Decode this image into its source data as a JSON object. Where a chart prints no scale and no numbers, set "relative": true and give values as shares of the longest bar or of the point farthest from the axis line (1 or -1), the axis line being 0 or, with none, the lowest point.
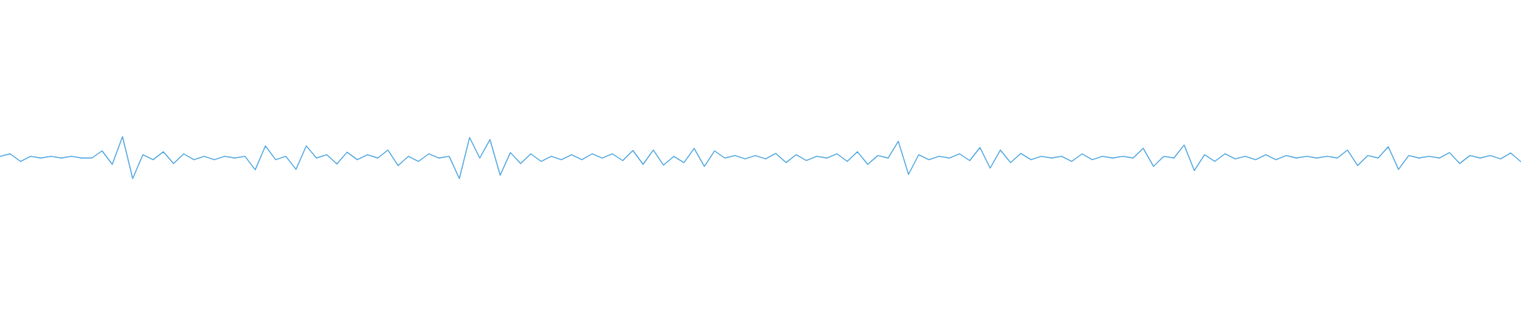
{
  "chart_data": {
    "type": "line",
    "relative": true,
    "categories": [
      null,
      null,
      null,
      null,
      null,
      null,
      null,
      null,
      null,
      null,
      null,
      null,
      null,
      null,
      null,
      null,
      null,
      null,
      null,
      null,
      null,
      null,
      null,
      null,
      null,
      null,
      null,
      null,
      null,
      null,
      null,
      null,
      null,
      null,
      null,
      null,
      null,
      null,
      null,
      null,
      null,
      null,
      null,
      null,
      null,
      null,
      null,
      null,
      null,
      null,
      null,
      null,
      null,
      null,
      null,
      null,
      null,
      null,
      null,
      null,
      null,
      null,
      null,
      null,
      null,
      null,
      null,
      null,
      null,
      null,
      null,
      null,
      null,
      null,
      null,
      null,
      null,
      null,
      null,
      null,
      null,
      null,
      null,
      null,
      null,
      null,
      null,
      null,
      null,
      null,
      null,
      null,
      null,
      null,
      null,
      null,
      null,
      null,
      null,
      null,
      null,
      null,
      null,
      null,
      null,
      null,
      null,
      null,
      null,
      null,
      null,
      null,
      null,
      null,
      null,
      null,
      null,
      null,
      null,
      null,
      null,
      null,
      null,
      null,
      null,
      null,
      null,
      null,
      null,
      null,
      null,
      null,
      null,
      null,
      null,
      null,
      null,
      null,
      null,
      null,
      null,
      null,
      null,
      null,
      null,
      null,
      null,
      null,
      null,
      null
    ],
    "series": [
      {
        "color": "#5dade2",
        "values": [
          0.53,
          0.59,
          0.41,
          0.53,
          0.49,
          0.53,
          0.49,
          0.53,
          0.49,
          0.49,
          0.66,
          0.34,
          1.0,
          0.0,
          0.57,
          0.45,
          0.64,
          0.36,
          0.59,
          0.45,
          0.53,
          0.45,
          0.53,
          0.49,
          0.53,
          0.21,
          0.78,
          0.45,
          0.53,
          0.22,
          0.78,
          0.49,
          0.57,
          0.35,
          0.63,
          0.45,
          0.57,
          0.49,
          0.68,
          0.31,
          0.53,
          0.41,
          0.59,
          0.49,
          0.53,
          0.0,
          0.98,
          0.49,
          0.93,
          0.08,
          0.62,
          0.36,
          0.59,
          0.41,
          0.53,
          0.45,
          0.57,
          0.45,
          0.59,
          0.49,
          0.59,
          0.43,
          0.67,
          0.34,
          0.68,
          0.32,
          0.53,
          0.38,
          0.72,
          0.29,
          0.66,
          0.49,
          0.55,
          0.47,
          0.55,
          0.47,
          0.6,
          0.38,
          0.57,
          0.43,
          0.53,
          0.49,
          0.59,
          0.41,
          0.64,
          0.34,
          0.55,
          0.49,
          0.89,
          0.1,
          0.57,
          0.45,
          0.53,
          0.49,
          0.59,
          0.43,
          0.74,
          0.25,
          0.68,
          0.38,
          0.6,
          0.45,
          0.53,
          0.49,
          0.53,
          0.41,
          0.59,
          0.45,
          0.53,
          0.49,
          0.53,
          0.49,
          0.72,
          0.29,
          0.53,
          0.49,
          0.8,
          0.19,
          0.57,
          0.41,
          0.59,
          0.47,
          0.53,
          0.45,
          0.57,
          0.45,
          0.55,
          0.49,
          0.53,
          0.49,
          0.53,
          0.49,
          0.68,
          0.31,
          0.55,
          0.49,
          0.76,
          0.22,
          0.55,
          0.49,
          0.53,
          0.49,
          0.62,
          0.36,
          0.55,
          0.49,
          0.55,
          0.47,
          0.61,
          0.4
        ]
      }
    ]
  }
}
